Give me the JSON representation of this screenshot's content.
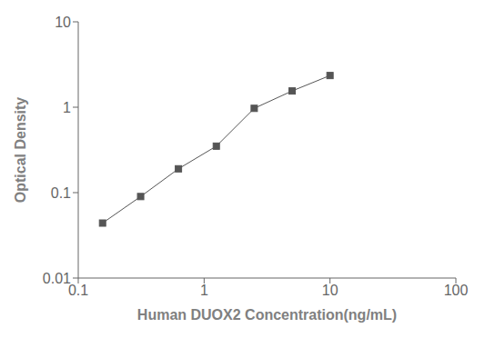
{
  "chart_data": {
    "type": "line",
    "xlabel": "Human DUOX2 Concentration(ng/mL)",
    "ylabel": "Optical Density",
    "x": [
      0.156,
      0.313,
      0.625,
      1.25,
      2.5,
      5.0,
      10.0
    ],
    "values": [
      0.044,
      0.09,
      0.19,
      0.35,
      0.97,
      1.55,
      2.35
    ],
    "xlim": [
      0.1,
      100
    ],
    "ylim": [
      0.01,
      10
    ],
    "xticks": [
      0.1,
      1,
      10,
      100
    ],
    "yticks": [
      0.01,
      0.1,
      1,
      10
    ],
    "log": true,
    "color": "#555555",
    "marker": "square",
    "grid": false
  }
}
